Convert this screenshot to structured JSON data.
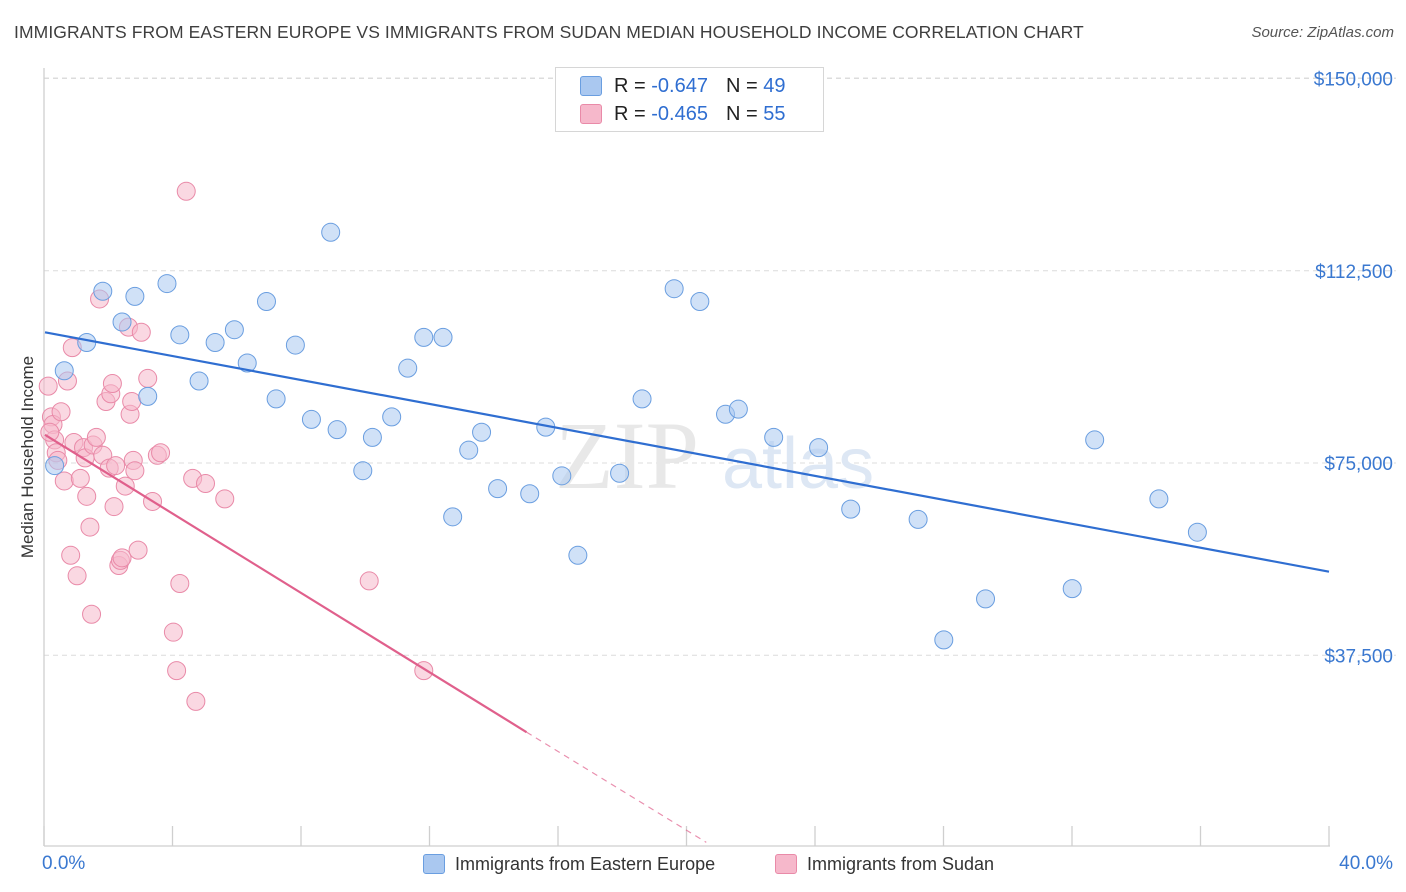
{
  "header": {
    "title": "IMMIGRANTS FROM EASTERN EUROPE VS IMMIGRANTS FROM SUDAN MEDIAN HOUSEHOLD INCOME CORRELATION CHART",
    "source": "Source: ZipAtlas.com"
  },
  "legend": {
    "rows": [
      {
        "r_label": "R = ",
        "r_value": "-0.647",
        "n_label": "N = ",
        "n_value": "49"
      },
      {
        "r_label": "R = ",
        "r_value": "-0.465",
        "n_label": "N = ",
        "n_value": "55"
      }
    ]
  },
  "watermark": {
    "zip": "ZIP",
    "atlas": "atlas"
  },
  "colors": {
    "blue_fill": "#aac8f0",
    "blue_stroke": "#6a9ee0",
    "blue_line": "#2f6ed1",
    "pink_fill": "#f6b8cb",
    "pink_stroke": "#e98aa8",
    "pink_line": "#e0608c",
    "axis_text": "#3a78d0"
  },
  "chart_data": {
    "type": "scatter",
    "title": "IMMIGRANTS FROM EASTERN EUROPE VS IMMIGRANTS FROM SUDAN MEDIAN HOUSEHOLD INCOME CORRELATION CHART",
    "xlabel": "",
    "ylabel": "Median Household Income",
    "x_tick_labels": [
      "0.0%",
      "40.0%"
    ],
    "y_tick_labels": [
      "$37,500",
      "$75,000",
      "$112,500",
      "$150,000"
    ],
    "y_ticks": [
      37500,
      75000,
      112500,
      150000
    ],
    "xlim": [
      0,
      40
    ],
    "ylim": [
      0,
      154000
    ],
    "grid": true,
    "legend_position": "top-center",
    "series": [
      {
        "name": "Immigrants from Eastern Europe",
        "r": -0.647,
        "n": 49,
        "trend": {
          "x": [
            0,
            40
          ],
          "y": [
            100500,
            53800
          ]
        },
        "points": [
          [
            0.3,
            74500
          ],
          [
            0.6,
            93000
          ],
          [
            1.3,
            98500
          ],
          [
            1.8,
            108500
          ],
          [
            2.4,
            102500
          ],
          [
            2.8,
            107500
          ],
          [
            3.2,
            88000
          ],
          [
            3.8,
            110000
          ],
          [
            4.2,
            100000
          ],
          [
            4.8,
            91000
          ],
          [
            5.3,
            98500
          ],
          [
            5.9,
            101000
          ],
          [
            6.3,
            94500
          ],
          [
            6.9,
            106500
          ],
          [
            7.2,
            87500
          ],
          [
            7.8,
            98000
          ],
          [
            8.3,
            83500
          ],
          [
            8.9,
            120000
          ],
          [
            9.1,
            81500
          ],
          [
            9.9,
            73500
          ],
          [
            10.2,
            80000
          ],
          [
            10.8,
            84000
          ],
          [
            11.3,
            93500
          ],
          [
            11.8,
            99500
          ],
          [
            12.4,
            99500
          ],
          [
            12.7,
            64500
          ],
          [
            13.2,
            77500
          ],
          [
            13.6,
            81000
          ],
          [
            14.1,
            70000
          ],
          [
            15.1,
            69000
          ],
          [
            15.6,
            82000
          ],
          [
            16.1,
            72500
          ],
          [
            16.6,
            57000
          ],
          [
            17.9,
            73000
          ],
          [
            18.6,
            87500
          ],
          [
            19.6,
            109000
          ],
          [
            20.4,
            106500
          ],
          [
            21.2,
            84500
          ],
          [
            21.6,
            85500
          ],
          [
            22.7,
            80000
          ],
          [
            24.1,
            78000
          ],
          [
            25.1,
            66000
          ],
          [
            27.2,
            64000
          ],
          [
            28.0,
            40500
          ],
          [
            29.3,
            48500
          ],
          [
            32.0,
            50500
          ],
          [
            32.7,
            79500
          ],
          [
            34.7,
            68000
          ],
          [
            35.9,
            61500
          ]
        ]
      },
      {
        "name": "Immigrants from Sudan",
        "r": -0.465,
        "n": 55,
        "trend": {
          "x": [
            0,
            15.0
          ],
          "y": [
            80500,
            22500
          ]
        },
        "trend_dashed": {
          "x": [
            15.0,
            20.6
          ],
          "y": [
            22500,
            1000
          ]
        },
        "points": [
          [
            0.1,
            90000
          ],
          [
            0.2,
            84000
          ],
          [
            0.25,
            82500
          ],
          [
            0.3,
            79500
          ],
          [
            0.35,
            77000
          ],
          [
            0.4,
            75500
          ],
          [
            0.5,
            85000
          ],
          [
            0.6,
            71500
          ],
          [
            0.7,
            91000
          ],
          [
            0.8,
            57000
          ],
          [
            0.85,
            97500
          ],
          [
            0.9,
            79000
          ],
          [
            1.0,
            53000
          ],
          [
            1.1,
            72000
          ],
          [
            1.2,
            78000
          ],
          [
            1.25,
            76000
          ],
          [
            1.3,
            68500
          ],
          [
            1.4,
            62500
          ],
          [
            1.45,
            45500
          ],
          [
            1.5,
            78500
          ],
          [
            1.6,
            80000
          ],
          [
            1.7,
            107000
          ],
          [
            1.8,
            76500
          ],
          [
            1.9,
            87000
          ],
          [
            2.0,
            74000
          ],
          [
            2.05,
            88500
          ],
          [
            2.1,
            90500
          ],
          [
            2.15,
            66500
          ],
          [
            2.2,
            74500
          ],
          [
            2.3,
            55000
          ],
          [
            2.35,
            56000
          ],
          [
            2.4,
            56500
          ],
          [
            2.5,
            70500
          ],
          [
            2.6,
            101500
          ],
          [
            2.65,
            84500
          ],
          [
            2.7,
            87000
          ],
          [
            2.75,
            75500
          ],
          [
            2.8,
            73500
          ],
          [
            2.9,
            58000
          ],
          [
            3.0,
            100500
          ],
          [
            3.2,
            91500
          ],
          [
            3.35,
            67500
          ],
          [
            3.5,
            76500
          ],
          [
            3.6,
            77000
          ],
          [
            4.0,
            42000
          ],
          [
            4.1,
            34500
          ],
          [
            4.2,
            51500
          ],
          [
            4.4,
            128000
          ],
          [
            4.6,
            72000
          ],
          [
            4.7,
            28500
          ],
          [
            5.0,
            71000
          ],
          [
            5.6,
            68000
          ],
          [
            10.1,
            52000
          ],
          [
            11.8,
            34500
          ],
          [
            0.15,
            81000
          ]
        ]
      }
    ]
  }
}
